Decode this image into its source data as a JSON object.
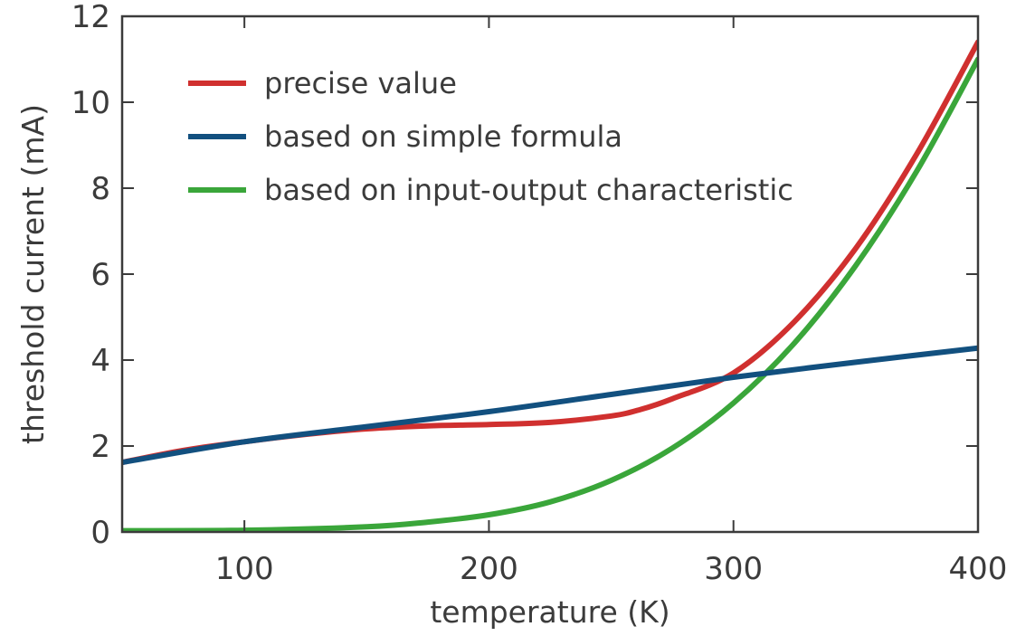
{
  "chart_data": {
    "type": "line",
    "title": "",
    "xlabel": "temperature (K)",
    "ylabel": "threshold current (mA)",
    "xlim": [
      50,
      400
    ],
    "ylim": [
      0,
      12
    ],
    "xticks": [
      100,
      200,
      300,
      400
    ],
    "yticks": [
      0,
      2,
      4,
      6,
      8,
      10,
      12
    ],
    "grid": false,
    "legend_position": "top-left",
    "series": [
      {
        "name": "precise value",
        "color": "#d0302f",
        "x": [
          50,
          75,
          100,
          125,
          150,
          175,
          200,
          225,
          250,
          262,
          275,
          300,
          325,
          350,
          375,
          400
        ],
        "y": [
          1.62,
          1.9,
          2.1,
          2.27,
          2.4,
          2.47,
          2.5,
          2.55,
          2.7,
          2.85,
          3.1,
          3.7,
          4.9,
          6.6,
          8.8,
          11.4
        ]
      },
      {
        "name": "based on simple formula",
        "color": "#12507f",
        "x": [
          50,
          100,
          150,
          200,
          250,
          300,
          350,
          400
        ],
        "y": [
          1.62,
          2.1,
          2.45,
          2.8,
          3.2,
          3.6,
          3.95,
          4.28
        ]
      },
      {
        "name": "based on input-output characteristic",
        "color": "#3aa63a",
        "x": [
          50,
          100,
          150,
          175,
          200,
          225,
          250,
          275,
          300,
          325,
          350,
          375,
          400
        ],
        "y": [
          0.03,
          0.04,
          0.12,
          0.23,
          0.4,
          0.7,
          1.2,
          1.95,
          3.0,
          4.4,
          6.2,
          8.4,
          11.0
        ]
      }
    ]
  }
}
